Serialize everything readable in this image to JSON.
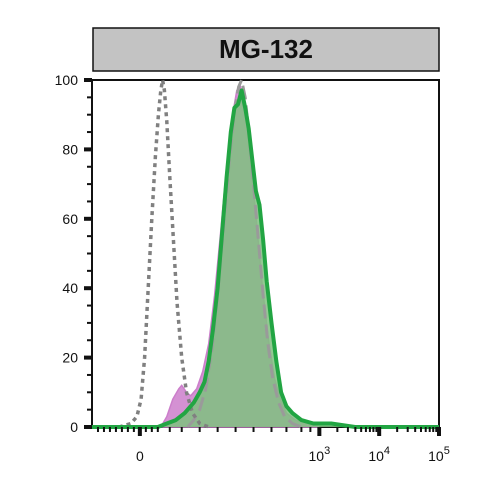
{
  "chart_data": {
    "type": "area",
    "title": "MG-132",
    "colors": {
      "title_bg": "#c3c3c3",
      "gray_dotted": "#808080",
      "pink_fill": "#cc7ecb",
      "green_line": "#22a543",
      "green_fill": "#7fc07f",
      "gray_dashed": "#9a9a9a"
    },
    "axes": {
      "y": {
        "range": [
          0,
          100
        ],
        "ticks": [
          0,
          20,
          40,
          60,
          80,
          100
        ],
        "tick_labels": [
          "0",
          "20",
          "40",
          "60",
          "80",
          "100"
        ]
      },
      "x": {
        "scale": "biexponential",
        "range": [
          -0.8,
          5.0
        ],
        "ticks": [
          {
            "value": 0,
            "base": "0",
            "exp": ""
          },
          {
            "value": 3,
            "base": "10",
            "exp": "3"
          },
          {
            "value": 4,
            "base": "10",
            "exp": "4"
          },
          {
            "value": 5,
            "base": "10",
            "exp": "5"
          }
        ]
      }
    },
    "series": [
      {
        "style": "dotted",
        "color": "#808080",
        "points": [
          [
            -0.35,
            0
          ],
          [
            -0.15,
            1
          ],
          [
            -0.05,
            3
          ],
          [
            0.02,
            8
          ],
          [
            0.08,
            20
          ],
          [
            0.14,
            40
          ],
          [
            0.2,
            60
          ],
          [
            0.26,
            78
          ],
          [
            0.31,
            90
          ],
          [
            0.35,
            97
          ],
          [
            0.38,
            100
          ],
          [
            0.41,
            97
          ],
          [
            0.45,
            88
          ],
          [
            0.5,
            72
          ],
          [
            0.56,
            54
          ],
          [
            0.62,
            36
          ],
          [
            0.7,
            20
          ],
          [
            0.78,
            10
          ],
          [
            0.88,
            4
          ],
          [
            1.0,
            1
          ],
          [
            1.15,
            0
          ]
        ]
      },
      {
        "style": "pink-filled",
        "color": "#cc7ecb",
        "points": [
          [
            0.35,
            0
          ],
          [
            0.45,
            3
          ],
          [
            0.55,
            8
          ],
          [
            0.65,
            11
          ],
          [
            0.7,
            12
          ],
          [
            0.78,
            10
          ],
          [
            0.85,
            9
          ],
          [
            0.95,
            11
          ],
          [
            1.05,
            16
          ],
          [
            1.15,
            24
          ],
          [
            1.25,
            38
          ],
          [
            1.35,
            56
          ],
          [
            1.45,
            75
          ],
          [
            1.55,
            90
          ],
          [
            1.62,
            97
          ],
          [
            1.68,
            98
          ],
          [
            1.74,
            93
          ],
          [
            1.8,
            85
          ],
          [
            1.88,
            72
          ],
          [
            1.96,
            57
          ],
          [
            2.05,
            40
          ],
          [
            2.15,
            25
          ],
          [
            2.25,
            14
          ],
          [
            2.35,
            8
          ],
          [
            2.45,
            4
          ],
          [
            2.6,
            2
          ],
          [
            2.8,
            1
          ],
          [
            3.0,
            0
          ]
        ]
      },
      {
        "style": "green-line-filled",
        "color": "#22a543",
        "points": [
          [
            -0.8,
            0
          ],
          [
            0.3,
            0
          ],
          [
            0.45,
            1
          ],
          [
            0.6,
            2
          ],
          [
            0.75,
            4
          ],
          [
            0.9,
            7
          ],
          [
            1.0,
            10
          ],
          [
            1.08,
            13
          ],
          [
            1.15,
            19
          ],
          [
            1.22,
            28
          ],
          [
            1.3,
            40
          ],
          [
            1.38,
            57
          ],
          [
            1.45,
            72
          ],
          [
            1.52,
            85
          ],
          [
            1.58,
            92
          ],
          [
            1.64,
            93
          ],
          [
            1.7,
            97
          ],
          [
            1.76,
            92
          ],
          [
            1.82,
            86
          ],
          [
            1.88,
            77
          ],
          [
            1.94,
            68
          ],
          [
            2.0,
            64
          ],
          [
            2.06,
            54
          ],
          [
            2.12,
            42
          ],
          [
            2.2,
            30
          ],
          [
            2.28,
            19
          ],
          [
            2.36,
            10
          ],
          [
            2.45,
            6
          ],
          [
            2.55,
            4
          ],
          [
            2.7,
            2
          ],
          [
            2.9,
            1
          ],
          [
            3.2,
            1
          ],
          [
            3.6,
            0
          ],
          [
            5.0,
            0
          ]
        ]
      },
      {
        "style": "dashed",
        "color": "#9a9a9a",
        "points": [
          [
            0.8,
            0
          ],
          [
            0.9,
            2
          ],
          [
            1.0,
            5
          ],
          [
            1.1,
            11
          ],
          [
            1.2,
            22
          ],
          [
            1.3,
            38
          ],
          [
            1.4,
            58
          ],
          [
            1.5,
            78
          ],
          [
            1.58,
            91
          ],
          [
            1.65,
            98
          ],
          [
            1.7,
            100
          ],
          [
            1.76,
            95
          ],
          [
            1.82,
            85
          ],
          [
            1.9,
            70
          ],
          [
            1.98,
            54
          ],
          [
            2.06,
            38
          ],
          [
            2.14,
            24
          ],
          [
            2.22,
            14
          ],
          [
            2.32,
            7
          ],
          [
            2.42,
            3
          ],
          [
            2.55,
            1
          ],
          [
            2.7,
            0
          ]
        ]
      }
    ],
    "grid": false,
    "legend": false
  }
}
